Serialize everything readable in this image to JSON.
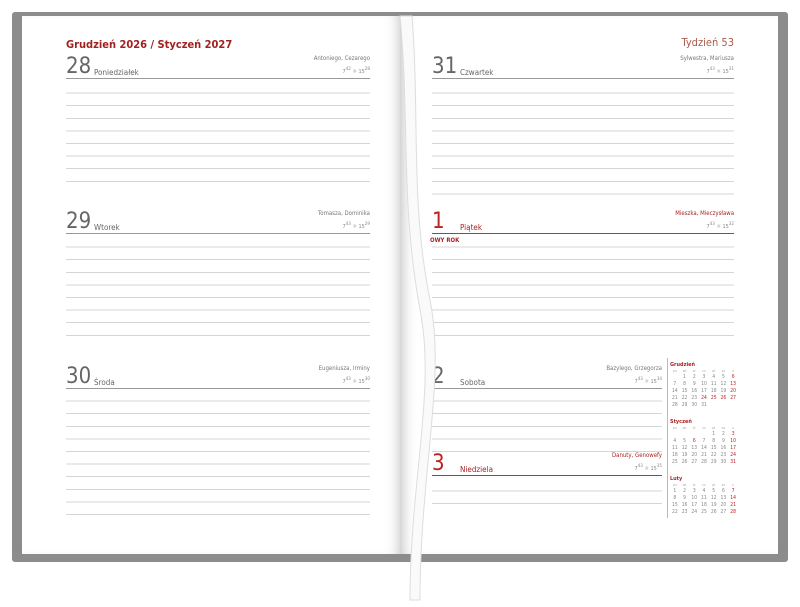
{
  "header": {
    "title": "Grudzień 2026 / Styczeń 2027",
    "week": "Tydzień 53"
  },
  "days": [
    {
      "num": "28",
      "name": "Poniedziałek",
      "names": "Antoniego, Cezarego",
      "rise": "7",
      "rise_min": "42",
      "set": "15",
      "set_min": "28"
    },
    {
      "num": "29",
      "name": "Wtorek",
      "names": "Tomasza, Dominika",
      "rise": "7",
      "rise_min": "43",
      "set": "15",
      "set_min": "29"
    },
    {
      "num": "30",
      "name": "Środa",
      "names": "Eugeniusza, Irminy",
      "rise": "7",
      "rise_min": "43",
      "set": "15",
      "set_min": "30"
    },
    {
      "num": "31",
      "name": "Czwartek",
      "names": "Sylwestra, Mariusza",
      "rise": "7",
      "rise_min": "43",
      "set": "15",
      "set_min": "31"
    },
    {
      "num": "1",
      "name": "Piątek",
      "names": "Mieszka, Mieczysława",
      "rise": "7",
      "rise_min": "43",
      "set": "15",
      "set_min": "32",
      "holiday": "OWY ROK"
    },
    {
      "num": "2",
      "name": "Sobota",
      "names": "Bazylego, Grzegorza",
      "rise": "7",
      "rise_min": "43",
      "set": "15",
      "set_min": "34"
    },
    {
      "num": "3",
      "name": "Niedziela",
      "names": "Danuty, Genowefy",
      "rise": "7",
      "rise_min": "43",
      "set": "15",
      "set_min": "35"
    }
  ],
  "sun_icon": "sun-icon",
  "calendars": [
    {
      "title": "Grudzień",
      "weekdays": [
        "pn",
        "wt",
        "śr",
        "cz",
        "pt",
        "so",
        "n"
      ],
      "start_offset": 1,
      "days": 31,
      "red": [
        6,
        13,
        20,
        24,
        25,
        26,
        27
      ]
    },
    {
      "title": "Styczeń",
      "weekdays": [
        "pn",
        "wt",
        "śr",
        "cz",
        "pt",
        "so",
        "n"
      ],
      "start_offset": 4,
      "days": 31,
      "red": [
        3,
        6,
        10,
        17,
        24,
        31
      ]
    },
    {
      "title": "Luty",
      "weekdays": [
        "pn",
        "wt",
        "śr",
        "cz",
        "pt",
        "so",
        "n"
      ],
      "start_offset": 0,
      "days": 28,
      "red": [
        7,
        14,
        21,
        28
      ]
    }
  ],
  "colors": {
    "accent": "#a32020",
    "cover": "#8c8c8c"
  }
}
